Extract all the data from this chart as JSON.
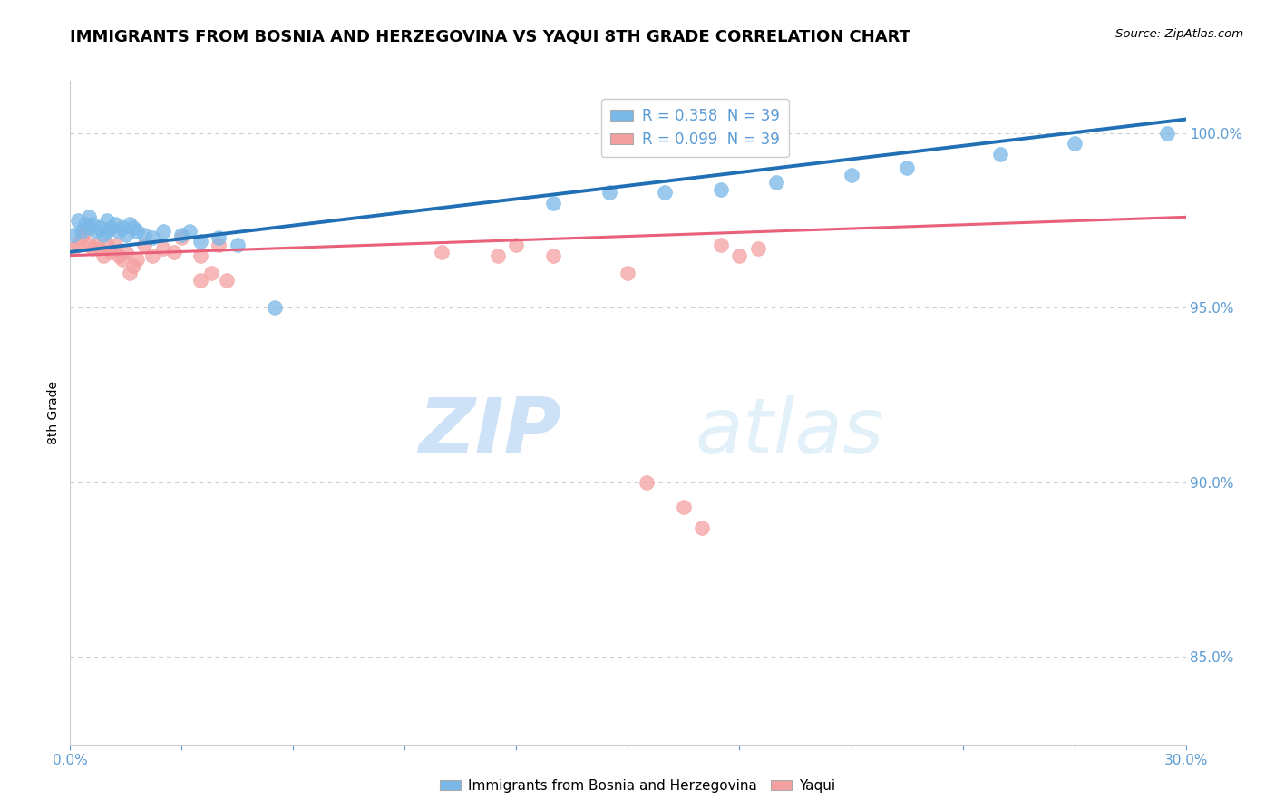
{
  "title": "IMMIGRANTS FROM BOSNIA AND HERZEGOVINA VS YAQUI 8TH GRADE CORRELATION CHART",
  "source": "Source: ZipAtlas.com",
  "ylabel": "8th Grade",
  "ytick_labels": [
    "85.0%",
    "90.0%",
    "95.0%",
    "100.0%"
  ],
  "ytick_values": [
    0.85,
    0.9,
    0.95,
    1.0
  ],
  "legend_entries": [
    {
      "label": "R = 0.358  N = 39",
      "color": "#7ab8e8"
    },
    {
      "label": "R = 0.099  N = 39",
      "color": "#f4a0a0"
    }
  ],
  "legend_labels": [
    "Immigrants from Bosnia and Herzegovina",
    "Yaqui"
  ],
  "blue_scatter_x": [
    0.001,
    0.002,
    0.003,
    0.004,
    0.005,
    0.005,
    0.006,
    0.007,
    0.008,
    0.009,
    0.01,
    0.01,
    0.011,
    0.012,
    0.013,
    0.014,
    0.015,
    0.016,
    0.017,
    0.018,
    0.02,
    0.022,
    0.025,
    0.03,
    0.032,
    0.035,
    0.04,
    0.045,
    0.055,
    0.13,
    0.145,
    0.16,
    0.175,
    0.19,
    0.21,
    0.225,
    0.25,
    0.27,
    0.295
  ],
  "blue_scatter_y": [
    0.971,
    0.975,
    0.972,
    0.974,
    0.973,
    0.976,
    0.974,
    0.972,
    0.973,
    0.971,
    0.972,
    0.975,
    0.973,
    0.974,
    0.972,
    0.973,
    0.971,
    0.974,
    0.973,
    0.972,
    0.971,
    0.97,
    0.972,
    0.971,
    0.972,
    0.969,
    0.97,
    0.968,
    0.95,
    0.98,
    0.983,
    0.983,
    0.984,
    0.986,
    0.988,
    0.99,
    0.994,
    0.997,
    1.0
  ],
  "pink_scatter_x": [
    0.001,
    0.002,
    0.003,
    0.004,
    0.005,
    0.006,
    0.007,
    0.008,
    0.009,
    0.01,
    0.011,
    0.012,
    0.013,
    0.014,
    0.015,
    0.016,
    0.017,
    0.018,
    0.02,
    0.022,
    0.025,
    0.028,
    0.03,
    0.035,
    0.04,
    0.035,
    0.038,
    0.042,
    0.1,
    0.115,
    0.12,
    0.13,
    0.15,
    0.155,
    0.165,
    0.17,
    0.175,
    0.18,
    0.185
  ],
  "pink_scatter_y": [
    0.967,
    0.968,
    0.97,
    0.972,
    0.968,
    0.967,
    0.968,
    0.967,
    0.965,
    0.968,
    0.966,
    0.968,
    0.965,
    0.964,
    0.966,
    0.96,
    0.962,
    0.964,
    0.968,
    0.965,
    0.967,
    0.966,
    0.97,
    0.965,
    0.968,
    0.958,
    0.96,
    0.958,
    0.966,
    0.965,
    0.968,
    0.965,
    0.96,
    0.9,
    0.893,
    0.887,
    0.968,
    0.965,
    0.967
  ],
  "blue_line_x": [
    0.0,
    0.3
  ],
  "blue_line_y": [
    0.966,
    1.004
  ],
  "pink_line_x": [
    0.0,
    0.3
  ],
  "pink_line_y": [
    0.965,
    0.976
  ],
  "scatter_size": 130,
  "blue_color": "#7ab8e8",
  "pink_color": "#f4a0a0",
  "blue_line_color": "#2170b5",
  "pink_line_color": "#e8607a",
  "background_color": "#ffffff",
  "watermark_zip": "ZIP",
  "watermark_atlas": "atlas",
  "title_fontsize": 13,
  "axis_label_color": "#5b9bd5",
  "grid_color": "#cccccc",
  "xlim": [
    0.0,
    0.3
  ],
  "ylim": [
    0.825,
    1.015
  ]
}
